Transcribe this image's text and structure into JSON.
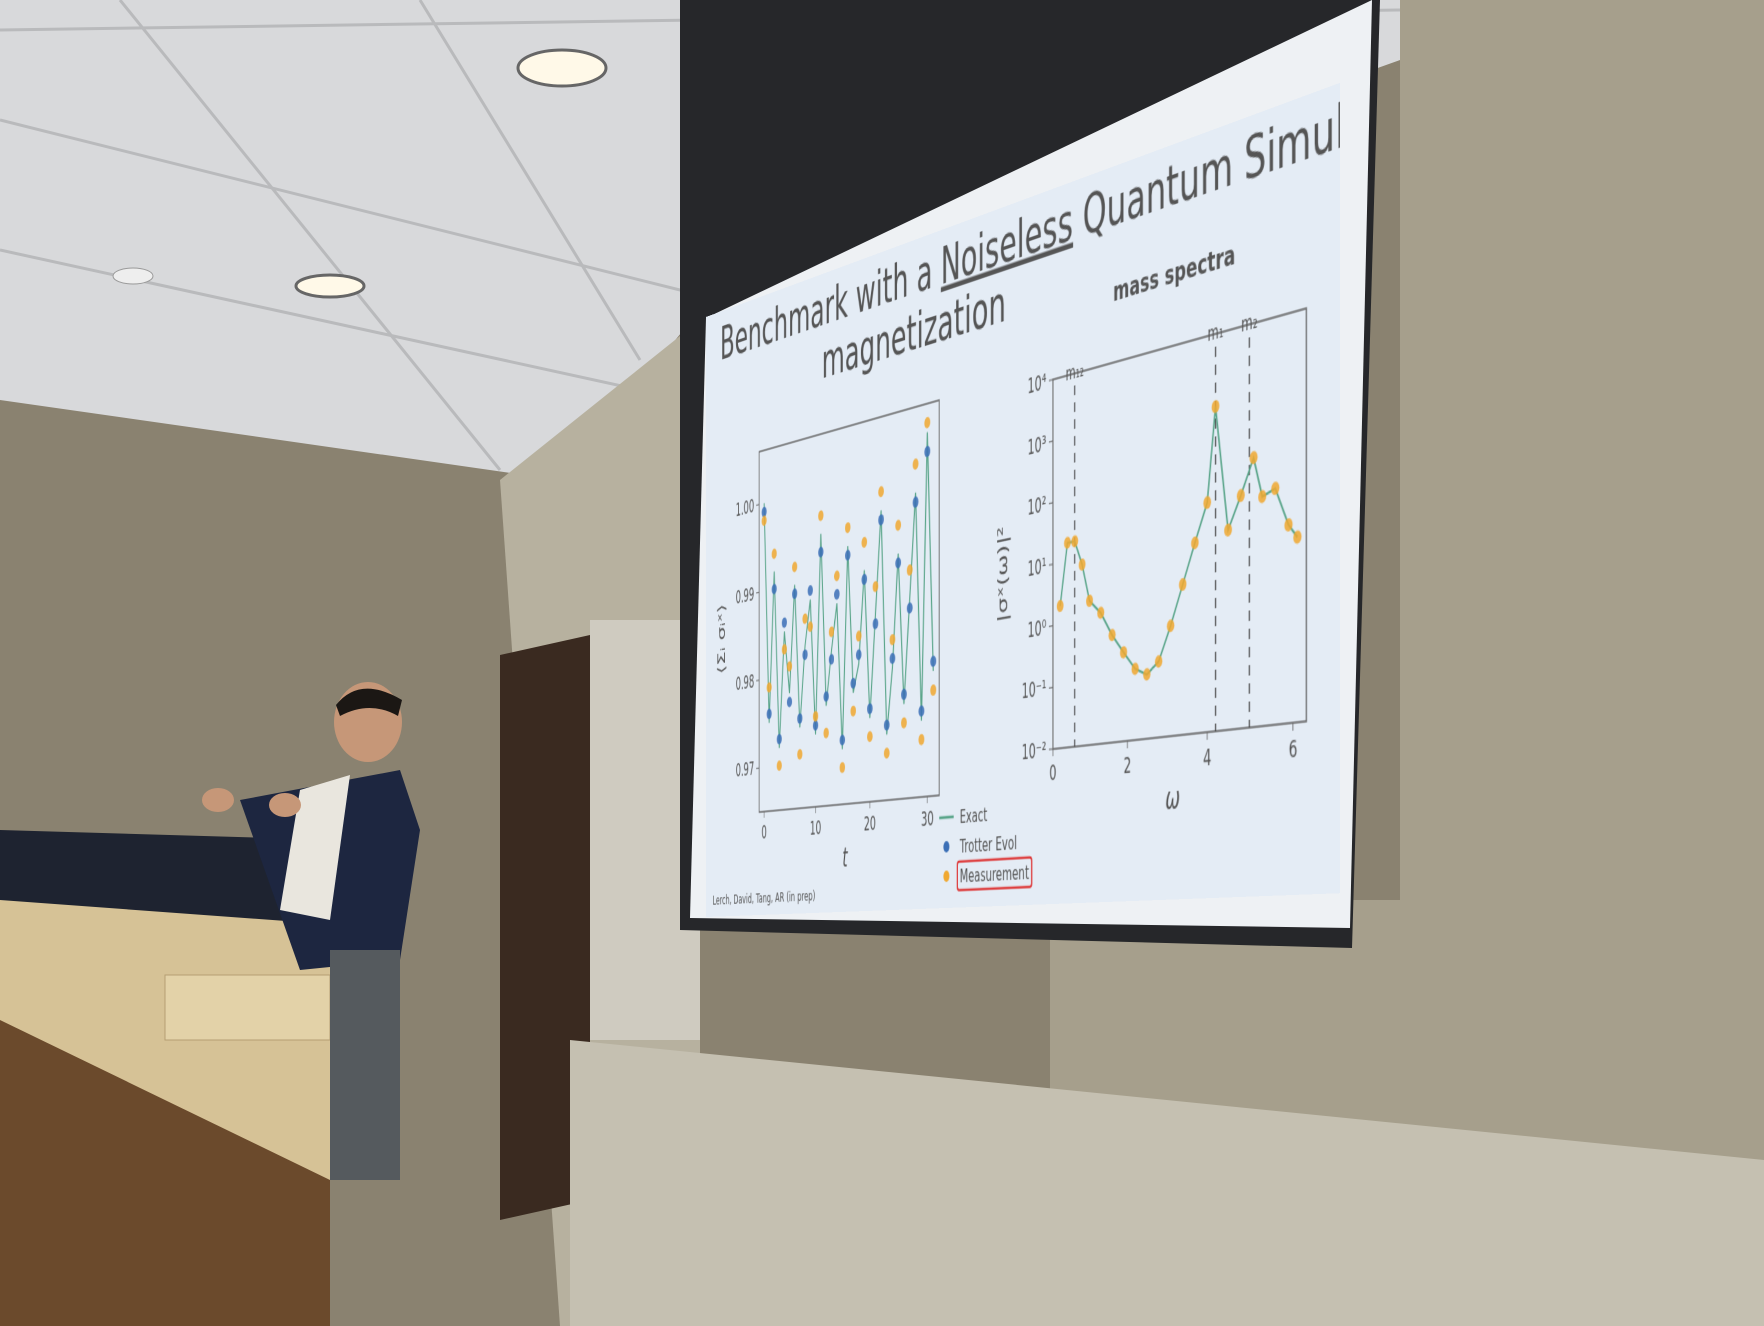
{
  "slide": {
    "title_part1": "Benchmark with a",
    "title_emphasis": "Noiseless",
    "title_part2": "Quantum Simulator:",
    "title_line2": "magnetization",
    "citation": "Lerch, David, Tang, AR (in prep)",
    "legend": [
      {
        "name": "Exact",
        "color": "#5aa58a"
      },
      {
        "name": "Trotter Evol",
        "color": "#3b6fb6"
      },
      {
        "name": "Measurement",
        "color": "#f0a830",
        "highlight": "#d33"
      }
    ]
  },
  "chart_data": [
    {
      "type": "line",
      "xlabel": "t",
      "ylabel": "⟨Σᵢ σᵢˣ⟩",
      "x": [
        0,
        1,
        2,
        3,
        4,
        5,
        6,
        7,
        8,
        9,
        10,
        11,
        12,
        13,
        14,
        15,
        16,
        17,
        18,
        19,
        20,
        21,
        22,
        23,
        24,
        25,
        26,
        27,
        28,
        29,
        30,
        31
      ],
      "xlim": [
        -1,
        32
      ],
      "xticks": [
        0,
        10,
        20,
        30
      ],
      "ylim": [
        0.965,
        1.006
      ],
      "yticks": [
        0.97,
        0.98,
        0.99,
        {
          "value": 1,
          "label": "1.00"
        }
      ],
      "series": [
        {
          "style": "line",
          "color": "#5aa58a",
          "values": [
            1.0,
            0.975,
            0.992,
            0.972,
            0.985,
            0.978,
            0.99,
            0.974,
            0.983,
            0.988,
            0.973,
            0.995,
            0.976,
            0.982,
            0.987,
            0.971,
            0.993,
            0.977,
            0.98,
            0.99,
            0.974,
            0.985,
            0.996,
            0.972,
            0.979,
            0.991,
            0.975,
            0.986,
            0.997,
            0.973,
            1.003,
            0.978
          ]
        },
        {
          "style": "dots",
          "color": "#3b6fb6",
          "values": [
            0.999,
            0.976,
            0.99,
            0.973,
            0.986,
            0.977,
            0.989,
            0.975,
            0.982,
            0.989,
            0.974,
            0.993,
            0.977,
            0.981,
            0.988,
            0.972,
            0.992,
            0.978,
            0.981,
            0.989,
            0.975,
            0.984,
            0.995,
            0.973,
            0.98,
            0.99,
            0.976,
            0.985,
            0.996,
            0.974,
            1.001,
            0.979
          ]
        },
        {
          "style": "dots",
          "color": "#f0a830",
          "values": [
            0.998,
            0.979,
            0.994,
            0.97,
            0.983,
            0.981,
            0.992,
            0.971,
            0.986,
            0.985,
            0.975,
            0.997,
            0.973,
            0.984,
            0.99,
            0.969,
            0.995,
            0.975,
            0.983,
            0.993,
            0.972,
            0.988,
            0.998,
            0.97,
            0.982,
            0.994,
            0.973,
            0.989,
            1.0,
            0.971,
            1.004,
            0.976
          ]
        }
      ]
    },
    {
      "type": "line",
      "title": "mass spectra",
      "xlabel": "ω",
      "ylabel": "|σˣ(ω)|²",
      "log_y": true,
      "x": [
        0.2,
        0.4,
        0.6,
        0.8,
        1.0,
        1.3,
        1.6,
        1.9,
        2.2,
        2.5,
        2.8,
        3.1,
        3.4,
        3.7,
        4.0,
        4.2,
        4.5,
        4.8,
        5.1,
        5.3,
        5.6,
        5.9,
        6.1
      ],
      "xlim": [
        0,
        6.3
      ],
      "xticks": [
        0,
        2,
        4,
        6
      ],
      "ylim": [
        0.01,
        10000
      ],
      "yticks": [
        {
          "value": 0.01,
          "label": "10⁻²"
        },
        {
          "value": 0.1,
          "label": "10⁻¹"
        },
        {
          "value": 1,
          "label": "10⁰"
        },
        {
          "value": 10,
          "label": "10¹"
        },
        {
          "value": 100,
          "label": "10²"
        },
        {
          "value": 1000,
          "label": "10³"
        },
        {
          "value": 10000,
          "label": "10⁴"
        }
      ],
      "series": [
        {
          "style": "line-dots",
          "color": "#5aa58a",
          "marker_color": "#f0a830",
          "values": [
            2,
            20,
            20,
            8,
            2,
            1.2,
            0.5,
            0.25,
            0.13,
            0.1,
            0.15,
            0.5,
            2,
            8,
            30,
            800,
            10,
            30,
            100,
            25,
            30,
            8,
            5
          ]
        }
      ],
      "annotations": [
        {
          "x": 0.6,
          "label": "m₁₂"
        },
        {
          "x": 4.2,
          "label": "m₁"
        },
        {
          "x": 5.0,
          "label": "m₂"
        }
      ]
    }
  ]
}
